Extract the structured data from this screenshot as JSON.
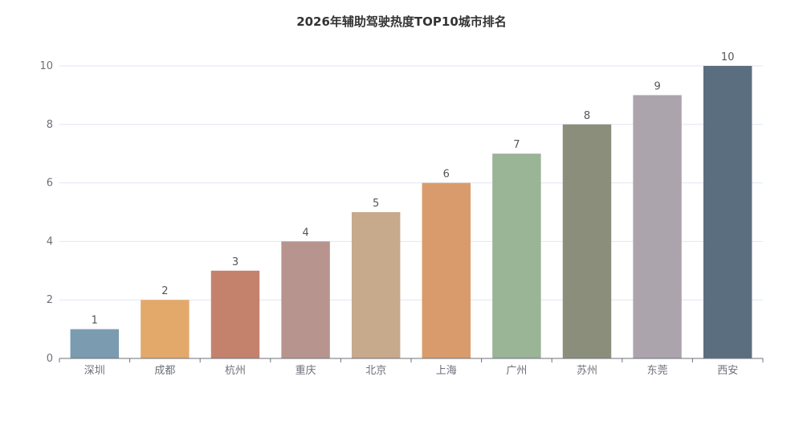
{
  "chart_data": {
    "type": "bar",
    "title": "2026年辅助驾驶热度TOP10城市排名",
    "categories": [
      "深圳",
      "成都",
      "杭州",
      "重庆",
      "北京",
      "上海",
      "广州",
      "苏州",
      "东莞",
      "西安"
    ],
    "values": [
      1,
      2,
      3,
      4,
      5,
      6,
      7,
      8,
      9,
      10
    ],
    "colors": [
      "#7a9bb0",
      "#e2a96a",
      "#c4826d",
      "#b8948e",
      "#c7a98b",
      "#d99b6b",
      "#9ab496",
      "#8b8e7b",
      "#aba4ad",
      "#5a6e80"
    ],
    "ylim": [
      0,
      10
    ],
    "yticks": [
      0,
      2,
      4,
      6,
      8,
      10
    ],
    "xlabel": "",
    "ylabel": "",
    "grid": true,
    "data_labels": true
  }
}
